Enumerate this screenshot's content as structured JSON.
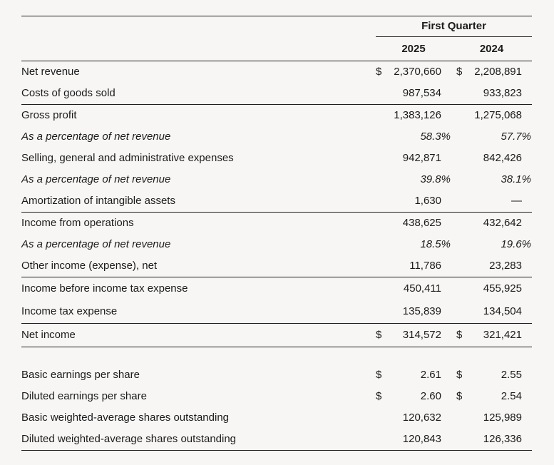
{
  "meta": {
    "background_color": "#f7f6f4",
    "text_color": "#1b1b1b",
    "rule_color": "#1e1e1e"
  },
  "header": {
    "period_label": "First Quarter",
    "year_columns": [
      "2025",
      "2024"
    ]
  },
  "rows": [
    {
      "label": "Net revenue",
      "d1": "$",
      "v1": "2,370,660",
      "d2": "$",
      "v2": "2,208,891"
    },
    {
      "label": "Costs of goods sold",
      "v1": "987,534",
      "v2": "933,823"
    },
    {
      "label": "Gross profit",
      "v1": "1,383,126",
      "v2": "1,275,068"
    },
    {
      "label": "As a percentage of net revenue",
      "v1": "58.3%",
      "v2": "57.7%"
    },
    {
      "label": "Selling, general and administrative expenses",
      "v1": "942,871",
      "v2": "842,426"
    },
    {
      "label": "As a percentage of net revenue",
      "v1": "39.8%",
      "v2": "38.1%"
    },
    {
      "label": "Amortization of intangible assets",
      "v1": "1,630",
      "v2": "—"
    },
    {
      "label": "Income from operations",
      "v1": "438,625",
      "v2": "432,642"
    },
    {
      "label": "As a percentage of net revenue",
      "v1": "18.5%",
      "v2": "19.6%"
    },
    {
      "label": "Other income (expense), net",
      "v1": "11,786",
      "v2": "23,283"
    },
    {
      "label": "Income before income tax expense",
      "v1": "450,411",
      "v2": "455,925"
    },
    {
      "label": "Income tax expense",
      "v1": "135,839",
      "v2": "134,504"
    },
    {
      "label": "Net income",
      "d1": "$",
      "v1": "314,572",
      "d2": "$",
      "v2": "321,421"
    },
    {
      "label": "Basic earnings per share",
      "d1": "$",
      "v1": "2.61",
      "d2": "$",
      "v2": "2.55"
    },
    {
      "label": "Diluted earnings per share",
      "d1": "$",
      "v1": "2.60",
      "d2": "$",
      "v2": "2.54"
    },
    {
      "label": "Basic weighted-average shares outstanding",
      "v1": "120,632",
      "v2": "125,989"
    },
    {
      "label": "Diluted weighted-average shares outstanding",
      "v1": "120,843",
      "v2": "126,336"
    }
  ]
}
